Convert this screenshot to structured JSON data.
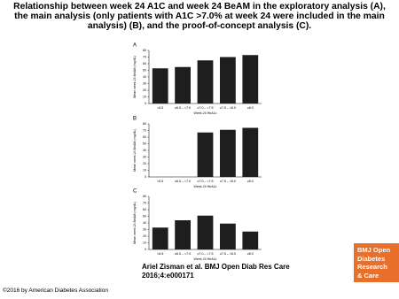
{
  "title": "Relationship between week 24 A1C and week 24 BeAM in the exploratory analysis (A), the main analysis (only patients with A1C >7.0% at week 24 were included in the main analysis) (B), and the proof-of-concept analysis (C).",
  "citation": "Ariel Zisman et al. BMJ Open Diab Res Care 2016;4:e000171",
  "logo": [
    "BMJ Open",
    "Diabetes",
    "Research",
    "& Care"
  ],
  "copyright": "©2016 by American Diabetes Association",
  "chart_data": [
    {
      "type": "bar",
      "panel": "A",
      "ylabel": "Mean week 24 BeAM (mg/dL)",
      "xlabel": "Week 24 HbA1c",
      "categories": [
        "<6.5",
        "≥6.5 – <7.0",
        "≥7.0 – <7.5",
        "≥7.5 – <8.0",
        "≥8.0"
      ],
      "values": [
        53,
        55,
        65,
        70,
        73
      ],
      "color": "#1e1e1e",
      "ylim": [
        0,
        80
      ],
      "yticks": [
        0,
        10,
        20,
        30,
        40,
        50,
        60,
        70,
        80
      ]
    },
    {
      "type": "bar",
      "panel": "B",
      "ylabel": "Mean week 24 BeAM (mg/dL)",
      "xlabel": "Week 24 HbA1c",
      "categories": [
        "<6.5",
        "≥6.5 – <7.0",
        "≥7.0 – <7.5",
        "≥7.5 – <8.0",
        "≥8.0"
      ],
      "values": [
        null,
        null,
        67,
        71,
        74
      ],
      "color": "#1e1e1e",
      "ylim": [
        0,
        80
      ],
      "yticks": [
        0,
        10,
        20,
        30,
        40,
        50,
        60,
        70,
        80
      ]
    },
    {
      "type": "bar",
      "panel": "C",
      "ylabel": "Mean week 24 BeAM (mg/dL)",
      "xlabel": "Week 24 HbA1c",
      "categories": [
        "<6.5",
        "≥6.5 – <7.0",
        "≥7.0 – <7.5",
        "≥7.5 – <8.0",
        "≥8.0"
      ],
      "values": [
        33,
        44,
        51,
        39,
        27
      ],
      "color": "#1e1e1e",
      "ylim": [
        0,
        80
      ],
      "yticks": [
        0,
        10,
        20,
        30,
        40,
        50,
        60,
        70,
        80
      ]
    }
  ]
}
